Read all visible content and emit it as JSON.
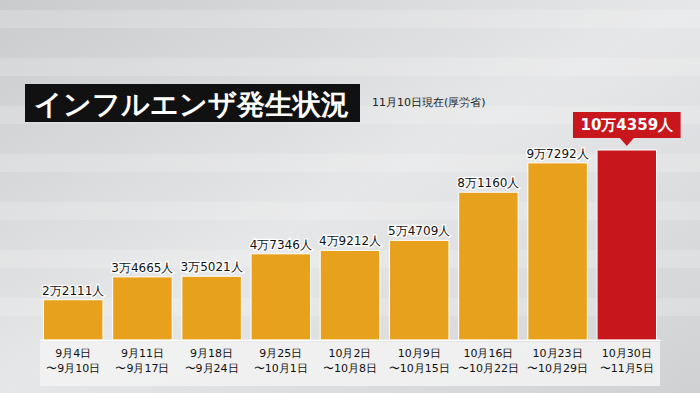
{
  "chart_data": {
    "type": "bar",
    "title": "インフルエンザ発生状況",
    "subtitle": "11月10日現在(厚労省)",
    "categories": [
      "9月4日〜9月10日",
      "9月11日〜9月17日",
      "9月18日〜9月24日",
      "9月25日〜10月1日",
      "10月2日〜10月8日",
      "10月9日〜10月15日",
      "10月16日〜10月22日",
      "10月23日〜10月29日",
      "10月30日〜11月5日"
    ],
    "values": [
      22111,
      34665,
      35021,
      47346,
      49212,
      54709,
      81160,
      97292,
      104359
    ],
    "value_labels": [
      "2万2111人",
      "3万4665人",
      "3万5021人",
      "4万7346人",
      "4万9212人",
      "5万4709人",
      "8万1160人",
      "9万7292人",
      "10万4359人"
    ],
    "colors": [
      "#e8a11c",
      "#e8a11c",
      "#e8a11c",
      "#e8a11c",
      "#e8a11c",
      "#e8a11c",
      "#e8a11c",
      "#e8a11c",
      "#c8161d"
    ],
    "data_labels": true,
    "tick_labels": "x"
  }
}
